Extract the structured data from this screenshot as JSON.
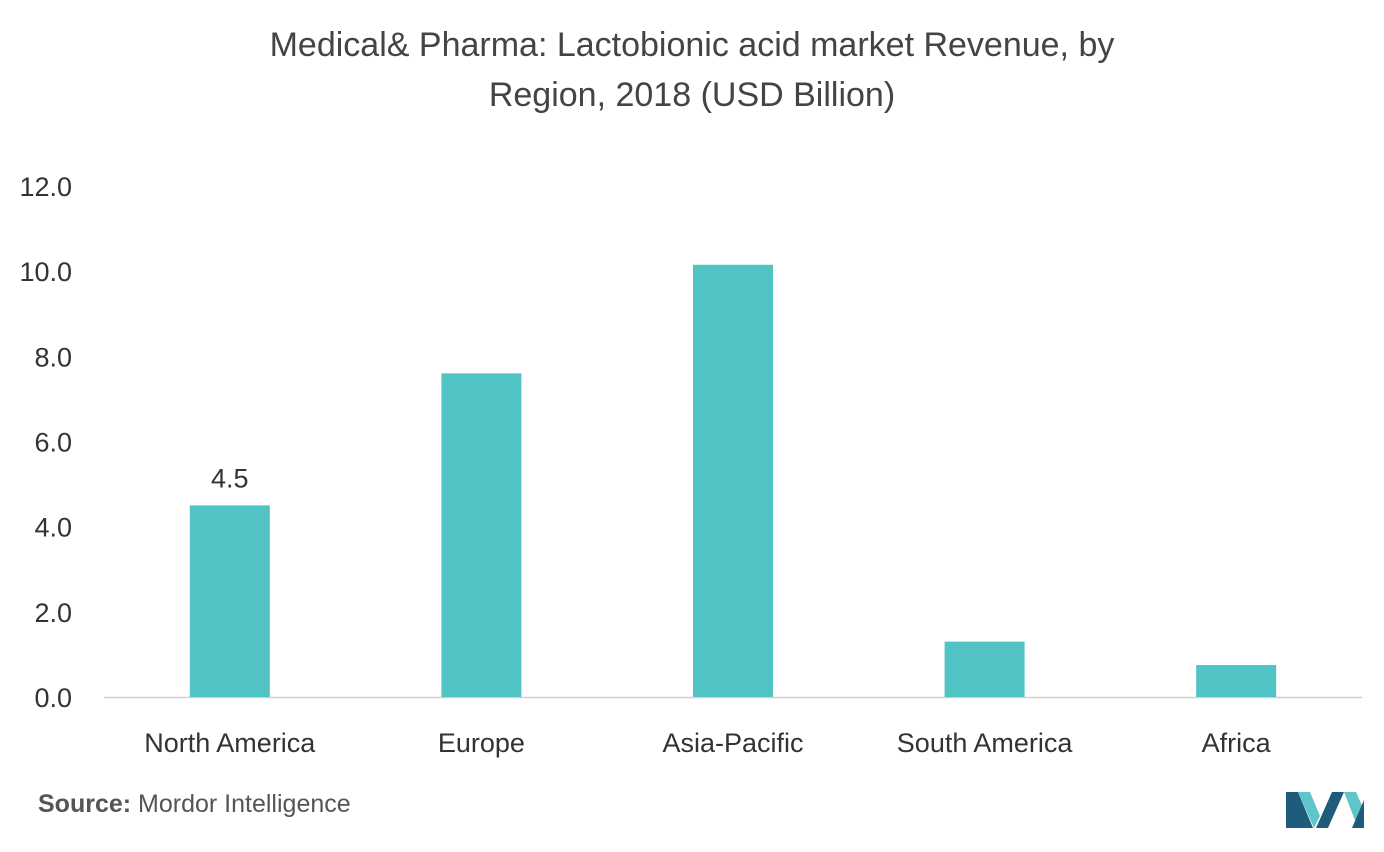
{
  "title_lines": [
    "Medical& Pharma: Lactobionic acid market Revenue, by",
    "Region, 2018 (USD Billion)"
  ],
  "source": {
    "label": "Source:",
    "text": "Mordor Intelligence"
  },
  "colors": {
    "bar": "#52C3C5",
    "axis": "#D0D0D0",
    "text": "#333333",
    "logo_dark": "#1F5B7A",
    "logo_light": "#5EC6C8"
  },
  "logo": {
    "icon": "mordor-intelligence-logo-icon"
  },
  "chart_data": {
    "type": "bar",
    "title": "Medical& Pharma: Lactobionic acid market Revenue, by Region, 2018 (USD Billion)",
    "categories": [
      "North America",
      "Europe",
      "Asia-Pacific",
      "South America",
      "Africa"
    ],
    "values": [
      4.5,
      7.6,
      10.15,
      1.3,
      0.75
    ],
    "data_labels": [
      "4.5",
      "",
      "",
      "",
      ""
    ],
    "ylim": [
      0,
      12
    ],
    "yticks": [
      "0.0",
      "2.0",
      "4.0",
      "6.0",
      "8.0",
      "10.0",
      "12.0"
    ],
    "xlabel": "",
    "ylabel": "",
    "grid": false,
    "legend": "none"
  }
}
